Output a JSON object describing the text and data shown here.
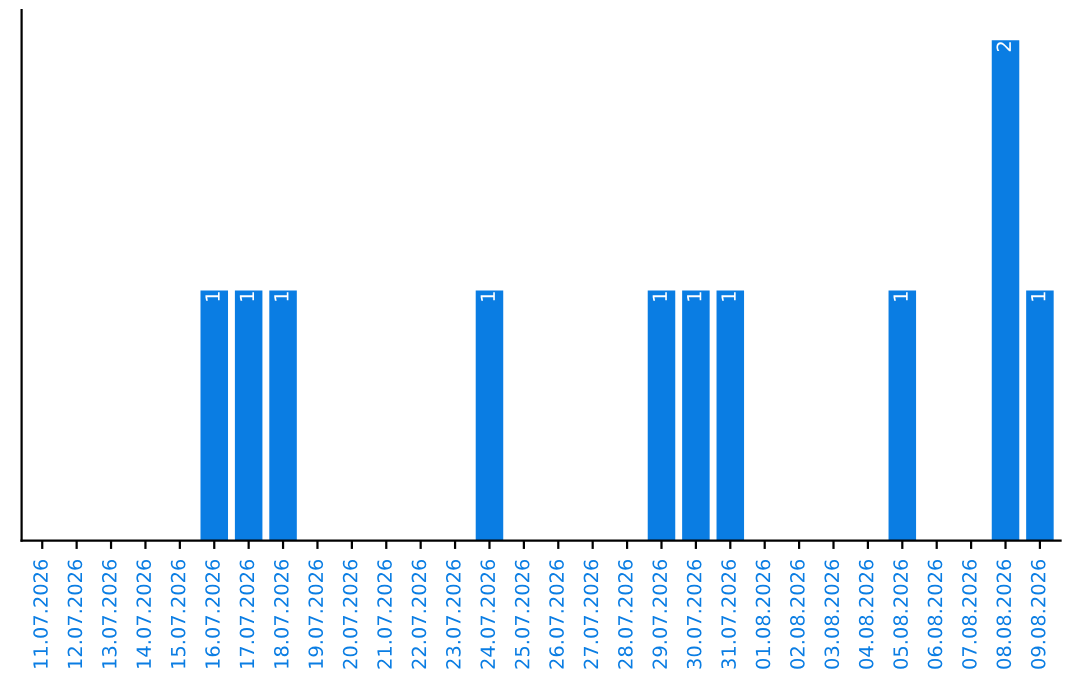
{
  "chart_data": {
    "type": "bar",
    "categories": [
      "11.07.2026",
      "12.07.2026",
      "13.07.2026",
      "14.07.2026",
      "15.07.2026",
      "16.07.2026",
      "17.07.2026",
      "18.07.2026",
      "19.07.2026",
      "20.07.2026",
      "21.07.2026",
      "22.07.2026",
      "23.07.2026",
      "24.07.2026",
      "25.07.2026",
      "26.07.2026",
      "27.07.2026",
      "28.07.2026",
      "29.07.2026",
      "30.07.2026",
      "31.07.2026",
      "01.08.2026",
      "02.08.2026",
      "03.08.2026",
      "04.08.2026",
      "05.08.2026",
      "06.08.2026",
      "07.08.2026",
      "08.08.2026",
      "09.08.2026"
    ],
    "values": [
      0,
      0,
      0,
      0,
      0,
      1,
      1,
      1,
      0,
      0,
      0,
      0,
      0,
      1,
      0,
      0,
      0,
      0,
      1,
      1,
      1,
      0,
      0,
      0,
      0,
      1,
      0,
      0,
      2,
      1
    ],
    "value_labels": [
      null,
      null,
      null,
      null,
      null,
      "1",
      "1",
      "1",
      null,
      null,
      null,
      null,
      null,
      "1",
      null,
      null,
      null,
      null,
      "1",
      "1",
      "1",
      null,
      null,
      null,
      null,
      "1",
      null,
      null,
      "2",
      "1"
    ],
    "color": "#0a7de3",
    "tick_labels": "x",
    "grid": false
  }
}
